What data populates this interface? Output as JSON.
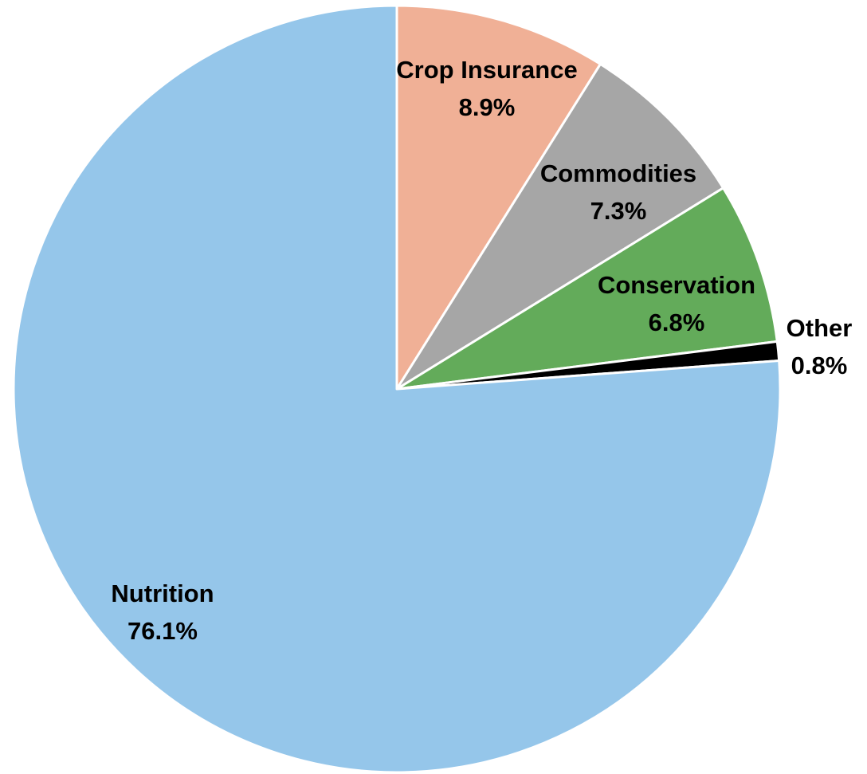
{
  "chart_data": {
    "type": "pie",
    "title": "",
    "start_angle_deg": 0,
    "direction": "clockwise",
    "slices": [
      {
        "label": "Crop Insurance",
        "value": 8.9,
        "value_label": "8.9%",
        "color": "#F0B096"
      },
      {
        "label": "Commodities",
        "value": 7.3,
        "value_label": "7.3%",
        "color": "#A6A6A6"
      },
      {
        "label": "Conservation",
        "value": 6.8,
        "value_label": "6.8%",
        "color": "#63AB5A"
      },
      {
        "label": "Other",
        "value": 0.8,
        "value_label": "0.8%",
        "color": "#000000"
      },
      {
        "label": "Nutrition",
        "value": 76.1,
        "value_label": "76.1%",
        "color": "#95C6EA"
      }
    ],
    "border_color": "#FFFFFF",
    "legend": "none"
  }
}
